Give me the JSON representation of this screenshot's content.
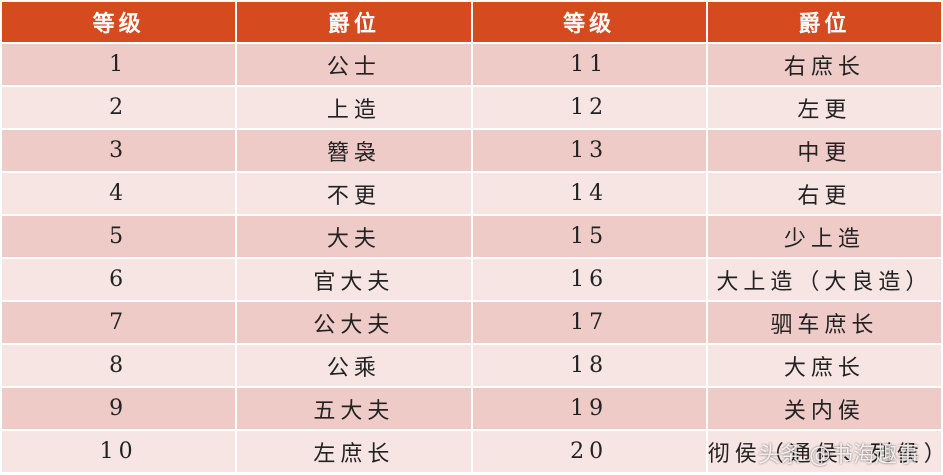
{
  "table": {
    "header": [
      "等级",
      "爵位",
      "等级",
      "爵位"
    ],
    "rows": [
      [
        1,
        "公士",
        11,
        "右庶长"
      ],
      [
        2,
        "上造",
        12,
        "左更"
      ],
      [
        3,
        "簪袅",
        13,
        "中更"
      ],
      [
        4,
        "不更",
        14,
        "右更"
      ],
      [
        5,
        "大夫",
        15,
        "少上造"
      ],
      [
        6,
        "官大夫",
        16,
        "大上造（大良造）"
      ],
      [
        7,
        "公大夫",
        17,
        "驷车庶长"
      ],
      [
        8,
        "公乘",
        18,
        "大庶长"
      ],
      [
        9,
        "五大夫",
        19,
        "关内侯"
      ],
      [
        10,
        "左庶长",
        20,
        "彻侯（通侯、列侯）"
      ]
    ]
  },
  "watermark": "头条 @书海趣事"
}
